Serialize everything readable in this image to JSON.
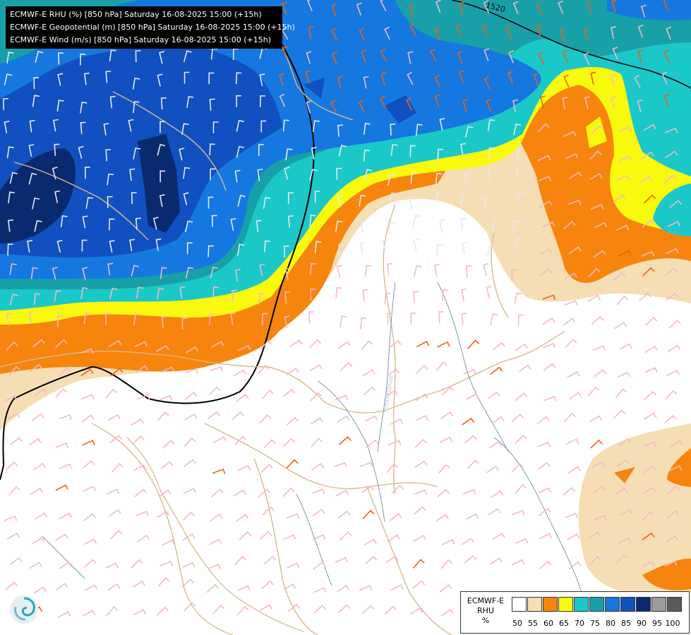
{
  "header": {
    "lines": [
      "ECMWF-E RHU (%) [850 hPa] Saturday 16-08-2025 15:00 (+15h)",
      "ECMWF-E Geopotential (m) [850 hPa] Saturday 16-08-2025 15:00 (+15h)",
      "ECMWF-E Wind (m/s) [850 hPa] Saturday 16-08-2025 15:00 (+15h)"
    ]
  },
  "map": {
    "isoline_label": "1520",
    "colors": {
      "lt50": "#ffffff",
      "c55": "#f5deb3",
      "c60": "#f7840c",
      "c65": "#f9f90e",
      "c70": "#1ac8c8",
      "c75": "#17a0a8",
      "c80": "#1478e0",
      "c85": "#1050c0",
      "c90": "#0a2a70",
      "c95": "#9c9c9c",
      "c100": "#5a5a5a"
    }
  },
  "legend": {
    "title_lines": [
      "ECMWF-E",
      "RHU",
      "%"
    ],
    "ticks": [
      "50",
      "55",
      "60",
      "65",
      "70",
      "75",
      "80",
      "85",
      "90",
      "95",
      "100"
    ],
    "swatches": [
      "#ffffff",
      "#f5deb3",
      "#f7840c",
      "#f9f90e",
      "#1ac8c8",
      "#17a0a8",
      "#1478e0",
      "#1050c0",
      "#0a2a70",
      "#9c9c9c",
      "#5a5a5a"
    ]
  },
  "logo": {
    "icon": "swirl-logo-icon"
  }
}
